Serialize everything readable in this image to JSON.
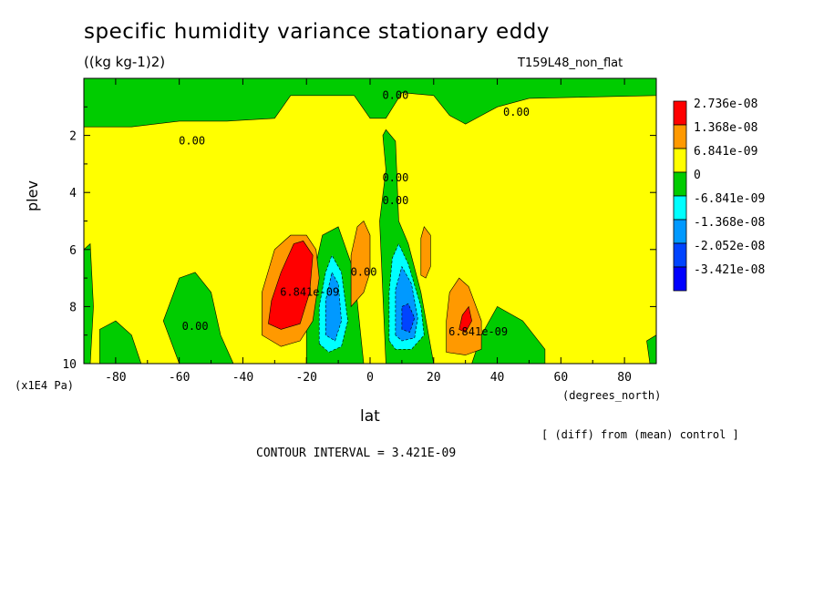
{
  "header": {
    "title": "specific humidity variance stationary eddy",
    "units": "((kg kg-1)2)",
    "run": "T159L48_non_flat"
  },
  "footer": {
    "y_unit": "(x1E4 Pa)",
    "x_unit": "(degrees_north)",
    "diff_note": "[ (diff) from (mean) control ]",
    "contour_interval": "CONTOUR INTERVAL = 3.421E-09"
  },
  "chart_data": {
    "type": "heatmap",
    "title": "specific humidity variance stationary eddy",
    "xlabel": "lat",
    "ylabel": "plev",
    "xlim": [
      -90,
      90
    ],
    "ylim": [
      10,
      0
    ],
    "x_ticks": [
      -80,
      -60,
      -40,
      -20,
      0,
      20,
      40,
      60,
      80
    ],
    "x_tick_labels": [
      "-80",
      "-60",
      "-40",
      "-20",
      "0",
      "20",
      "40",
      "60",
      "80"
    ],
    "y_ticks": [
      2,
      4,
      6,
      8,
      10
    ],
    "y_tick_labels": [
      "2",
      "4",
      "6",
      "8",
      "10"
    ],
    "legend": {
      "placement": "right",
      "entries": [
        {
          "label": "2.736e-08",
          "color": "#ff0000"
        },
        {
          "label": "1.368e-08",
          "color": "#ff9900"
        },
        {
          "label": "6.841e-09",
          "color": "#ffff00"
        },
        {
          "label": "0",
          "color": "#00cc00"
        },
        {
          "label": "-6.841e-09",
          "color": "#00ffff"
        },
        {
          "label": "-1.368e-08",
          "color": "#0099ff"
        },
        {
          "label": "-2.052e-08",
          "color": "#0044ff"
        },
        {
          "label": "-3.421e-08",
          "color": "#0000ff"
        }
      ]
    },
    "colors": {
      "background_field": "#ffff00",
      "negative_small": "#00cc00",
      "positive_mid": "#ff9900",
      "positive_high": "#ff0000",
      "negative_mid": "#00ffff",
      "negative_strong": "#0099ff",
      "negative_extreme": "#0044ff"
    },
    "regions": [
      {
        "level": "negative_small",
        "points": [
          [
            -90,
            0
          ],
          [
            90,
            0
          ],
          [
            90,
            0.6
          ],
          [
            50,
            0.7
          ],
          [
            40,
            1.0
          ],
          [
            30,
            1.6
          ],
          [
            25,
            1.3
          ],
          [
            20,
            0.6
          ],
          [
            10,
            0.5
          ],
          [
            5,
            1.4
          ],
          [
            0,
            1.4
          ],
          [
            -5,
            0.6
          ],
          [
            -25,
            0.6
          ],
          [
            -30,
            1.4
          ],
          [
            -45,
            1.5
          ],
          [
            -60,
            1.5
          ],
          [
            -75,
            1.7
          ],
          [
            -90,
            1.7
          ]
        ]
      },
      {
        "level": "negative_small",
        "points": [
          [
            -20,
            10
          ],
          [
            -20,
            8.5
          ],
          [
            -17,
            6.5
          ],
          [
            -15,
            5.5
          ],
          [
            -10,
            5.2
          ],
          [
            -5,
            6.8
          ],
          [
            -2,
            10
          ]
        ]
      },
      {
        "level": "negative_small",
        "points": [
          [
            5,
            10
          ],
          [
            3,
            5
          ],
          [
            5,
            3.2
          ],
          [
            4,
            2.0
          ],
          [
            5,
            1.8
          ],
          [
            8,
            2.2
          ],
          [
            9,
            5
          ],
          [
            12,
            5.8
          ],
          [
            16,
            7.5
          ],
          [
            20,
            10
          ]
        ]
      },
      {
        "level": "negative_small",
        "points": [
          [
            -60,
            10
          ],
          [
            -65,
            8.5
          ],
          [
            -60,
            7.0
          ],
          [
            -55,
            6.8
          ],
          [
            -50,
            7.5
          ],
          [
            -47,
            9.0
          ],
          [
            -43,
            10
          ]
        ]
      },
      {
        "level": "negative_small",
        "points": [
          [
            -85,
            10
          ],
          [
            -85,
            8.8
          ],
          [
            -80,
            8.5
          ],
          [
            -75,
            9.0
          ],
          [
            -72,
            10
          ]
        ]
      },
      {
        "level": "negative_small",
        "points": [
          [
            -90,
            10
          ],
          [
            -90,
            6
          ],
          [
            -88,
            5.8
          ],
          [
            -87,
            8
          ],
          [
            -88,
            10
          ]
        ]
      },
      {
        "level": "negative_small",
        "points": [
          [
            32,
            10
          ],
          [
            35,
            9.0
          ],
          [
            40,
            8.0
          ],
          [
            48,
            8.5
          ],
          [
            55,
            9.5
          ],
          [
            55,
            10
          ]
        ]
      },
      {
        "level": "negative_small",
        "points": [
          [
            88,
            10
          ],
          [
            87,
            9.2
          ],
          [
            90,
            9.0
          ],
          [
            90,
            10
          ]
        ]
      },
      {
        "level": "negative_mid",
        "points": [
          [
            -16,
            9.3
          ],
          [
            -16,
            8.0
          ],
          [
            -14,
            6.8
          ],
          [
            -12,
            6.2
          ],
          [
            -9,
            6.8
          ],
          [
            -7,
            8.5
          ],
          [
            -9,
            9.4
          ],
          [
            -13,
            9.6
          ]
        ]
      },
      {
        "level": "negative_mid",
        "points": [
          [
            6,
            9.2
          ],
          [
            6,
            7.5
          ],
          [
            7,
            6.3
          ],
          [
            9,
            5.8
          ],
          [
            12,
            6.5
          ],
          [
            16,
            8.0
          ],
          [
            17,
            9.0
          ],
          [
            13,
            9.5
          ],
          [
            8,
            9.5
          ]
        ]
      },
      {
        "level": "negative_strong",
        "points": [
          [
            -14,
            9.0
          ],
          [
            -14,
            7.8
          ],
          [
            -12,
            6.8
          ],
          [
            -10,
            7.2
          ],
          [
            -9,
            8.5
          ],
          [
            -11,
            9.2
          ]
        ]
      },
      {
        "level": "negative_strong",
        "points": [
          [
            8,
            9.0
          ],
          [
            8,
            7.4
          ],
          [
            10,
            6.6
          ],
          [
            13,
            7.2
          ],
          [
            15,
            8.4
          ],
          [
            14,
            9.1
          ],
          [
            10,
            9.2
          ]
        ]
      },
      {
        "level": "negative_extreme",
        "points": [
          [
            10,
            8.8
          ],
          [
            10,
            8.0
          ],
          [
            12,
            7.9
          ],
          [
            14,
            8.4
          ],
          [
            12.5,
            8.9
          ]
        ]
      },
      {
        "level": "positive_mid",
        "points": [
          [
            -34,
            9.0
          ],
          [
            -34,
            7.5
          ],
          [
            -30,
            6.0
          ],
          [
            -25,
            5.5
          ],
          [
            -20,
            5.5
          ],
          [
            -17,
            6.0
          ],
          [
            -16,
            7.0
          ],
          [
            -18,
            8.5
          ],
          [
            -22,
            9.2
          ],
          [
            -28,
            9.4
          ]
        ]
      },
      {
        "level": "positive_mid",
        "points": [
          [
            -6,
            8.0
          ],
          [
            -6,
            6.2
          ],
          [
            -4,
            5.2
          ],
          [
            -2,
            5.0
          ],
          [
            0,
            5.5
          ],
          [
            0,
            6.8
          ],
          [
            -2,
            7.5
          ]
        ]
      },
      {
        "level": "positive_mid",
        "points": [
          [
            16,
            6.9
          ],
          [
            16,
            5.6
          ],
          [
            17,
            5.2
          ],
          [
            19,
            5.5
          ],
          [
            19,
            6.6
          ],
          [
            17.5,
            7.0
          ]
        ]
      },
      {
        "level": "positive_mid",
        "points": [
          [
            24,
            9.6
          ],
          [
            24,
            8.5
          ],
          [
            25,
            7.5
          ],
          [
            28,
            7.0
          ],
          [
            31,
            7.3
          ],
          [
            35,
            8.5
          ],
          [
            35,
            9.5
          ],
          [
            30,
            9.7
          ]
        ]
      },
      {
        "level": "positive_high",
        "points": [
          [
            -32,
            8.6
          ],
          [
            -31,
            7.8
          ],
          [
            -28,
            6.8
          ],
          [
            -24,
            5.8
          ],
          [
            -21,
            5.7
          ],
          [
            -18,
            6.2
          ],
          [
            -19,
            7.5
          ],
          [
            -22,
            8.6
          ],
          [
            -28,
            8.8
          ]
        ]
      },
      {
        "level": "positive_high",
        "points": [
          [
            28,
            8.8
          ],
          [
            29,
            8.3
          ],
          [
            31,
            8.0
          ],
          [
            32,
            8.5
          ],
          [
            30,
            8.9
          ]
        ]
      }
    ],
    "contour_labels": [
      {
        "text": "0.00",
        "lat": 8,
        "plev": 0.6
      },
      {
        "text": "0.00",
        "lat": 46,
        "plev": 1.2
      },
      {
        "text": "0.00",
        "lat": -56,
        "plev": 2.2
      },
      {
        "text": "0.00",
        "lat": 8,
        "plev": 3.5
      },
      {
        "text": "0.00",
        "lat": 8,
        "plev": 4.3
      },
      {
        "text": "0.00",
        "lat": -2,
        "plev": 6.8
      },
      {
        "text": "0.00",
        "lat": -55,
        "plev": 8.7
      },
      {
        "text": "6.841e-09",
        "lat": -19,
        "plev": 7.5
      },
      {
        "text": "6.841e-09",
        "lat": 34,
        "plev": 8.9
      }
    ]
  }
}
